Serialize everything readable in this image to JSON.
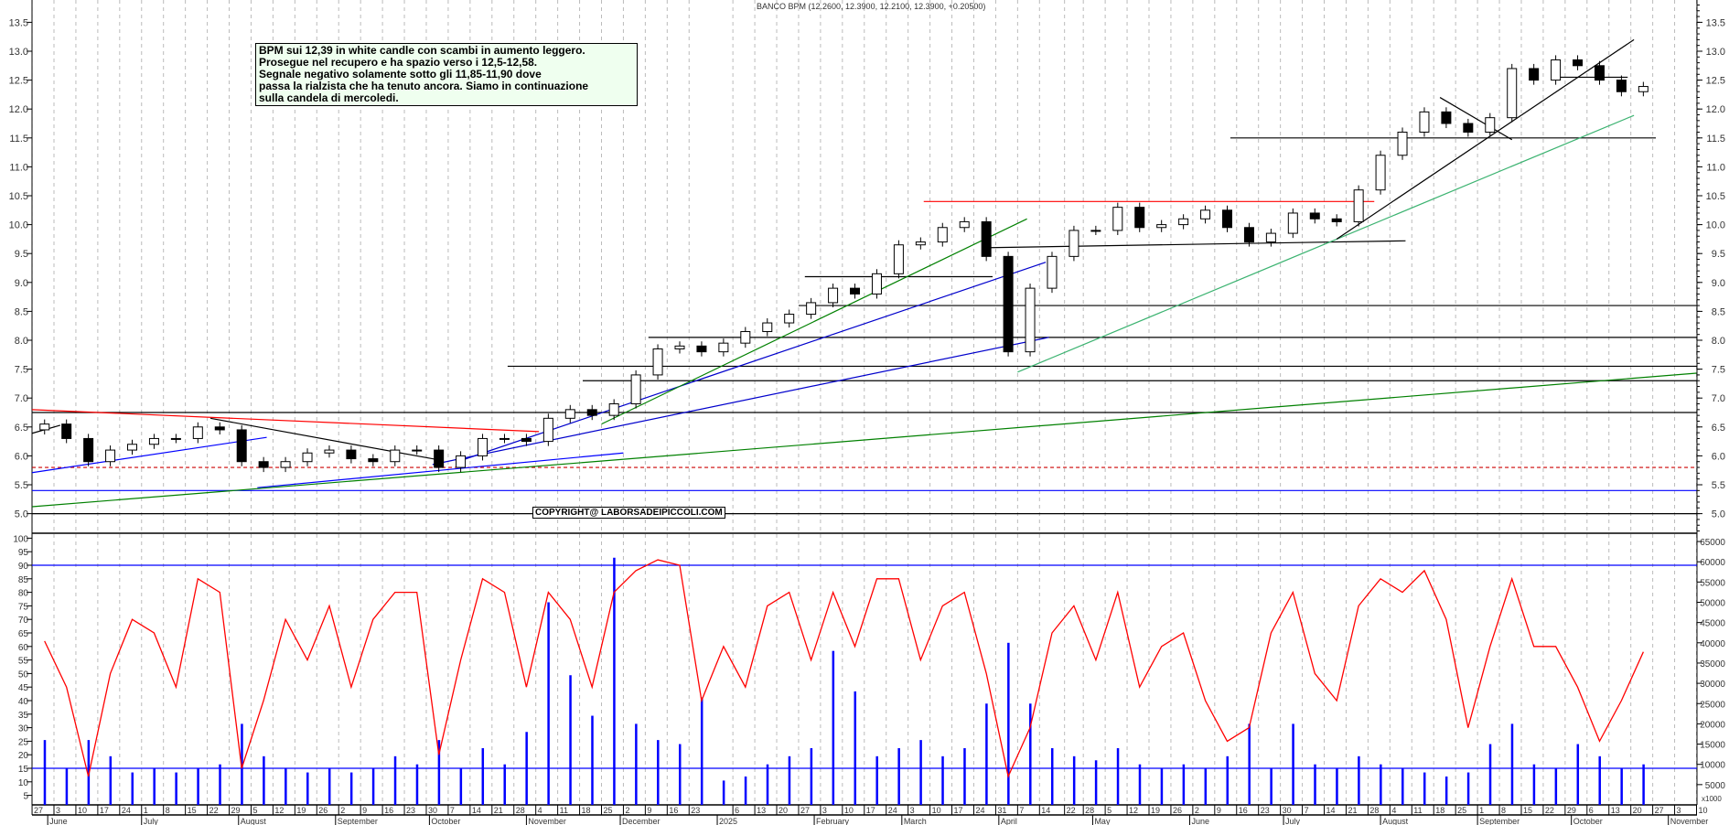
{
  "header": {
    "title": "BANCO BPM (12.2600, 12.3900, 12.2100, 12.3900, +0.20500)"
  },
  "annotation": {
    "lines": [
      "BPM sui 12,39 in white candle con scambi in aumento leggero.",
      "Prosegue nel recupero e ha spazio verso i 12,5-12,58.",
      "Segnale negativo solamente sotto gli 11,85-11,90 dove",
      "passa la rialzista che ha tenuto ancora. Siamo in continuazione",
      "sulla candela di mercoledi."
    ]
  },
  "copyright": "COPYRIGHT@ LABORSADEIPICCOLI.COM",
  "colors": {
    "up_candle": "#ffffff",
    "down_candle": "#000000",
    "oscillator": "#ff0000",
    "volume": "#0000ff",
    "grid": "#bbbbbb",
    "annotation_bg": "#efffef"
  },
  "x_axis": {
    "day_ticks": [
      {
        "date": "2024-05-27",
        "label": "27"
      },
      {
        "date": "2024-06-03",
        "label": "3"
      },
      {
        "date": "2024-06-10",
        "label": "10"
      },
      {
        "date": "2024-06-17",
        "label": "17"
      },
      {
        "date": "2024-06-24",
        "label": "24"
      },
      {
        "date": "2024-07-01",
        "label": "1"
      },
      {
        "date": "2024-07-08",
        "label": "8"
      },
      {
        "date": "2024-07-15",
        "label": "15"
      },
      {
        "date": "2024-07-22",
        "label": "22"
      },
      {
        "date": "2024-07-29",
        "label": "29"
      },
      {
        "date": "2024-08-05",
        "label": "5"
      },
      {
        "date": "2024-08-12",
        "label": "12"
      },
      {
        "date": "2024-08-19",
        "label": "19"
      },
      {
        "date": "2024-08-26",
        "label": "26"
      },
      {
        "date": "2024-09-02",
        "label": "2"
      },
      {
        "date": "2024-09-09",
        "label": "9"
      },
      {
        "date": "2024-09-16",
        "label": "16"
      },
      {
        "date": "2024-09-23",
        "label": "23"
      },
      {
        "date": "2024-09-30",
        "label": "30"
      },
      {
        "date": "2024-10-07",
        "label": "7"
      },
      {
        "date": "2024-10-14",
        "label": "14"
      },
      {
        "date": "2024-10-21",
        "label": "21"
      },
      {
        "date": "2024-10-28",
        "label": "28"
      },
      {
        "date": "2024-11-04",
        "label": "4"
      },
      {
        "date": "2024-11-11",
        "label": "11"
      },
      {
        "date": "2024-11-18",
        "label": "18"
      },
      {
        "date": "2024-11-25",
        "label": "25"
      },
      {
        "date": "2024-12-02",
        "label": "2"
      },
      {
        "date": "2024-12-09",
        "label": "9"
      },
      {
        "date": "2024-12-16",
        "label": "16"
      },
      {
        "date": "2024-12-23",
        "label": "23"
      },
      {
        "date": "2025-01-06",
        "label": "6"
      },
      {
        "date": "2025-01-13",
        "label": "13"
      },
      {
        "date": "2025-01-20",
        "label": "20"
      },
      {
        "date": "2025-01-27",
        "label": "27"
      },
      {
        "date": "2025-02-03",
        "label": "3"
      },
      {
        "date": "2025-02-10",
        "label": "10"
      },
      {
        "date": "2025-02-17",
        "label": "17"
      },
      {
        "date": "2025-02-24",
        "label": "24"
      },
      {
        "date": "2025-03-03",
        "label": "3"
      },
      {
        "date": "2025-03-10",
        "label": "10"
      },
      {
        "date": "2025-03-17",
        "label": "17"
      },
      {
        "date": "2025-03-24",
        "label": "24"
      },
      {
        "date": "2025-03-31",
        "label": "31"
      },
      {
        "date": "2025-04-07",
        "label": "7"
      },
      {
        "date": "2025-04-14",
        "label": "14"
      },
      {
        "date": "2025-04-22",
        "label": "22"
      },
      {
        "date": "2025-04-28",
        "label": "28"
      },
      {
        "date": "2025-05-05",
        "label": "5"
      },
      {
        "date": "2025-05-12",
        "label": "12"
      },
      {
        "date": "2025-05-19",
        "label": "19"
      },
      {
        "date": "2025-05-26",
        "label": "26"
      },
      {
        "date": "2025-06-02",
        "label": "2"
      },
      {
        "date": "2025-06-09",
        "label": "9"
      },
      {
        "date": "2025-06-16",
        "label": "16"
      },
      {
        "date": "2025-06-23",
        "label": "23"
      },
      {
        "date": "2025-06-30",
        "label": "30"
      },
      {
        "date": "2025-07-07",
        "label": "7"
      },
      {
        "date": "2025-07-14",
        "label": "14"
      },
      {
        "date": "2025-07-21",
        "label": "21"
      },
      {
        "date": "2025-07-28",
        "label": "28"
      },
      {
        "date": "2025-08-04",
        "label": "4"
      },
      {
        "date": "2025-08-11",
        "label": "11"
      },
      {
        "date": "2025-08-18",
        "label": "18"
      },
      {
        "date": "2025-08-25",
        "label": "25"
      },
      {
        "date": "2025-09-01",
        "label": "1"
      },
      {
        "date": "2025-09-08",
        "label": "8"
      },
      {
        "date": "2025-09-15",
        "label": "15"
      },
      {
        "date": "2025-09-22",
        "label": "22"
      },
      {
        "date": "2025-09-29",
        "label": "29"
      },
      {
        "date": "2025-10-06",
        "label": "6"
      },
      {
        "date": "2025-10-13",
        "label": "13"
      },
      {
        "date": "2025-10-20",
        "label": "20"
      },
      {
        "date": "2025-10-27",
        "label": "27"
      },
      {
        "date": "2025-11-03",
        "label": "3"
      },
      {
        "date": "2025-11-10",
        "label": "10"
      }
    ],
    "month_ticks": [
      {
        "date": "2024-06-01",
        "label": "June"
      },
      {
        "date": "2024-07-01",
        "label": "July"
      },
      {
        "date": "2024-08-01",
        "label": "August"
      },
      {
        "date": "2024-09-01",
        "label": "September"
      },
      {
        "date": "2024-10-01",
        "label": "October"
      },
      {
        "date": "2024-11-01",
        "label": "November"
      },
      {
        "date": "2024-12-01",
        "label": "December"
      },
      {
        "date": "2025-01-01",
        "label": "2025"
      },
      {
        "date": "2025-02-01",
        "label": "February"
      },
      {
        "date": "2025-03-01",
        "label": "March"
      },
      {
        "date": "2025-04-01",
        "label": "April"
      },
      {
        "date": "2025-05-01",
        "label": "May"
      },
      {
        "date": "2025-06-01",
        "label": "June"
      },
      {
        "date": "2025-07-01",
        "label": "July"
      },
      {
        "date": "2025-08-01",
        "label": "August"
      },
      {
        "date": "2025-09-01",
        "label": "September"
      },
      {
        "date": "2025-10-01",
        "label": "October"
      },
      {
        "date": "2025-11-01",
        "label": "November"
      }
    ]
  },
  "chart_data": [
    {
      "type": "candlestick",
      "title": "BANCO BPM (12.2600, 12.3900, 12.2100, 12.3900, +0.20500)",
      "ylim": [
        4.66,
        13.89
      ],
      "y_ticks": [
        "13.5",
        "13.0",
        "12.5",
        "12.0",
        "11.5",
        "11.0",
        "10.5",
        "10.0",
        "9.5",
        "9.0",
        "8.5",
        "8.0",
        "7.5",
        "7.0",
        "6.5",
        "6.0",
        "5.5",
        "5.0"
      ],
      "grid": "vertical-dashed",
      "first_open": 6.45,
      "dates": [
        "2024-05-31",
        "2024-06-07",
        "2024-06-14",
        "2024-06-21",
        "2024-06-28",
        "2024-07-05",
        "2024-07-12",
        "2024-07-19",
        "2024-07-26",
        "2024-08-02",
        "2024-08-09",
        "2024-08-16",
        "2024-08-23",
        "2024-08-30",
        "2024-09-06",
        "2024-09-13",
        "2024-09-20",
        "2024-09-27",
        "2024-10-04",
        "2024-10-11",
        "2024-10-18",
        "2024-10-25",
        "2024-11-01",
        "2024-11-08",
        "2024-11-15",
        "2024-11-22",
        "2024-11-29",
        "2024-12-06",
        "2024-12-13",
        "2024-12-20",
        "2024-12-27",
        "2025-01-03",
        "2025-01-10",
        "2025-01-17",
        "2025-01-24",
        "2025-01-31",
        "2025-02-07",
        "2025-02-14",
        "2025-02-21",
        "2025-02-28",
        "2025-03-07",
        "2025-03-14",
        "2025-03-21",
        "2025-03-28",
        "2025-04-04",
        "2025-04-11",
        "2025-04-18",
        "2025-04-25",
        "2025-05-02",
        "2025-05-09",
        "2025-05-16",
        "2025-05-23",
        "2025-05-30",
        "2025-06-06",
        "2025-06-13",
        "2025-06-20",
        "2025-06-27",
        "2025-07-04",
        "2025-07-11",
        "2025-07-18",
        "2025-07-25",
        "2025-08-01",
        "2025-08-08",
        "2025-08-15",
        "2025-08-22",
        "2025-08-29",
        "2025-09-05",
        "2025-09-12",
        "2025-09-19",
        "2025-09-26",
        "2025-10-03",
        "2025-10-10",
        "2025-10-17",
        "2025-10-24"
      ],
      "close": [
        6.55,
        6.3,
        5.9,
        6.1,
        6.2,
        6.3,
        6.3,
        6.5,
        6.45,
        5.9,
        5.8,
        5.9,
        6.05,
        6.1,
        5.95,
        5.9,
        6.1,
        6.1,
        5.8,
        6.0,
        6.3,
        6.3,
        6.25,
        6.65,
        6.8,
        6.7,
        6.9,
        7.4,
        7.85,
        7.9,
        7.8,
        7.95,
        8.15,
        8.3,
        8.45,
        8.65,
        8.9,
        8.8,
        9.15,
        9.65,
        9.7,
        9.95,
        10.05,
        9.45,
        7.8,
        8.9,
        9.45,
        9.9,
        9.9,
        10.3,
        9.95,
        10.0,
        10.1,
        10.25,
        9.95,
        9.7,
        9.85,
        10.2,
        10.1,
        10.05,
        10.6,
        11.2,
        11.6,
        11.95,
        11.75,
        11.6,
        11.85,
        12.7,
        12.5,
        12.85,
        12.75,
        12.5,
        12.3,
        12.39
      ],
      "lines": [
        {
          "from": [
            "2025-06-14",
            11.5
          ],
          "to": [
            "2025-10-28",
            11.5
          ],
          "color": "#000000"
        },
        {
          "from": [
            "2025-03-08",
            10.4
          ],
          "to": [
            "2025-07-30",
            10.4
          ],
          "color": "#ff0000"
        },
        {
          "from": [
            "2025-03-27",
            9.6
          ],
          "to": [
            "2025-08-09",
            9.72
          ],
          "color": "#000000"
        },
        {
          "from": [
            "2025-01-29",
            9.1
          ],
          "to": [
            "2025-03-30",
            9.1
          ],
          "color": "#000000"
        },
        {
          "from": [
            "2025-01-27",
            8.6
          ],
          "to": [
            "2025-11-10",
            8.6
          ],
          "color": "#000000"
        },
        {
          "from": [
            "2024-12-10",
            8.05
          ],
          "to": [
            "2025-11-10",
            8.05
          ],
          "color": "#000000"
        },
        {
          "from": [
            "2024-10-26",
            7.55
          ],
          "to": [
            "2025-11-10",
            7.55
          ],
          "color": "#000000"
        },
        {
          "from": [
            "2024-11-19",
            7.3
          ],
          "to": [
            "2025-11-10",
            7.3
          ],
          "color": "#000000"
        },
        {
          "from": [
            "2024-05-27",
            6.75
          ],
          "to": [
            "2025-11-10",
            6.75
          ],
          "color": "#000000"
        },
        {
          "from": [
            "2024-05-27",
            5.8
          ],
          "to": [
            "2025-11-10",
            5.8
          ],
          "color": "#cc0000",
          "dashed": true
        },
        {
          "from": [
            "2024-05-27",
            5.4
          ],
          "to": [
            "2025-11-10",
            5.4
          ],
          "color": "#0000ff"
        },
        {
          "from": [
            "2024-05-27",
            5.0
          ],
          "to": [
            "2025-11-10",
            5.0
          ],
          "color": "#000000"
        },
        {
          "from": [
            "2024-05-27",
            6.8
          ],
          "to": [
            "2024-11-05",
            6.42
          ],
          "color": "#ff0000"
        },
        {
          "from": [
            "2024-05-27",
            6.39
          ],
          "to": [
            "2024-06-05",
            6.53
          ],
          "color": "#000000"
        },
        {
          "from": [
            "2024-07-23",
            6.65
          ],
          "to": [
            "2024-10-03",
            5.94
          ],
          "color": "#000000"
        },
        {
          "from": [
            "2024-05-27",
            5.71
          ],
          "to": [
            "2024-08-10",
            6.32
          ],
          "color": "#0000ff"
        },
        {
          "from": [
            "2024-08-07",
            5.45
          ],
          "to": [
            "2024-12-02",
            6.05
          ],
          "color": "#0000ff"
        },
        {
          "from": [
            "2024-10-02",
            5.85
          ],
          "to": [
            "2025-04-17",
            8.05
          ],
          "color": "#0000cc"
        },
        {
          "from": [
            "2024-10-10",
            5.9
          ],
          "to": [
            "2025-04-16",
            9.35
          ],
          "color": "#0000cc"
        },
        {
          "from": [
            "2024-05-27",
            5.12
          ],
          "to": [
            "2025-11-10",
            7.43
          ],
          "color": "#008000"
        },
        {
          "from": [
            "2024-11-25",
            6.55
          ],
          "to": [
            "2025-04-10",
            10.1
          ],
          "color": "#008000"
        },
        {
          "from": [
            "2025-04-07",
            7.45
          ],
          "to": [
            "2025-10-21",
            11.89
          ],
          "color": "#3cb371"
        },
        {
          "from": [
            "2025-07-18",
            9.75
          ],
          "to": [
            "2025-10-21",
            13.2
          ],
          "color": "#000000"
        },
        {
          "from": [
            "2025-08-20",
            12.2
          ],
          "to": [
            "2025-09-12",
            11.47
          ],
          "color": "#000000"
        },
        {
          "from": [
            "2025-09-25",
            12.55
          ],
          "to": [
            "2025-10-19",
            12.55
          ],
          "color": "#000000"
        }
      ]
    },
    {
      "type": "line+bar",
      "left_ticks": [
        "100",
        "95",
        "90",
        "85",
        "80",
        "75",
        "70",
        "65",
        "60",
        "55",
        "50",
        "45",
        "40",
        "35",
        "30",
        "25",
        "20",
        "15",
        "10",
        "5"
      ],
      "right_ticks": [
        "65000",
        "60000",
        "55000",
        "50000",
        "45000",
        "40000",
        "35000",
        "30000",
        "25000",
        "20000",
        "15000",
        "10000",
        "5000"
      ],
      "right_unit": "x1000",
      "hlines": [
        90,
        15
      ],
      "oscillator": [
        62,
        45,
        12,
        50,
        70,
        65,
        45,
        85,
        80,
        15,
        40,
        70,
        55,
        75,
        45,
        70,
        80,
        80,
        20,
        55,
        85,
        80,
        45,
        80,
        70,
        45,
        80,
        88,
        92,
        90,
        40,
        60,
        45,
        75,
        80,
        55,
        80,
        60,
        85,
        85,
        55,
        75,
        80,
        50,
        12,
        30,
        65,
        75,
        55,
        80,
        45,
        60,
        65,
        40,
        25,
        30,
        65,
        80,
        50,
        40,
        75,
        85,
        80,
        88,
        70,
        30,
        60,
        85,
        60,
        60,
        45,
        25,
        40,
        58
      ],
      "volume": [
        16000,
        9000,
        16000,
        12000,
        8000,
        9000,
        8000,
        9000,
        10000,
        20000,
        12000,
        9000,
        8000,
        9000,
        8000,
        9000,
        12000,
        10000,
        16000,
        9000,
        14000,
        10000,
        18000,
        50000,
        32000,
        22000,
        61000,
        20000,
        16000,
        15000,
        26500,
        6000,
        7000,
        10000,
        12000,
        14000,
        38000,
        28000,
        12000,
        14000,
        16000,
        12000,
        14000,
        25000,
        40000,
        25000,
        14000,
        12000,
        11000,
        14000,
        10000,
        9000,
        10000,
        9000,
        12000,
        20000,
        9000,
        20000,
        10000,
        9000,
        12000,
        10000,
        9000,
        8000,
        7000,
        8000,
        15000,
        20000,
        10000,
        9000,
        15000,
        12000,
        9000,
        10000
      ]
    }
  ]
}
